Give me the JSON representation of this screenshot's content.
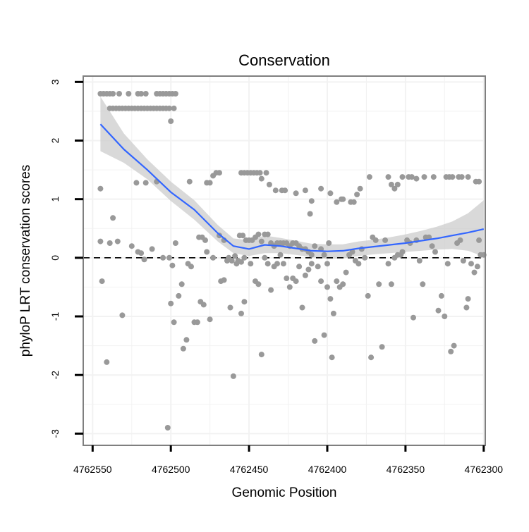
{
  "chart_data": {
    "type": "scatter",
    "title": "Conservation",
    "xlabel": "Genomic Position",
    "ylabel": "phyloP LRT conservation scores",
    "x_reversed": true,
    "xlim": [
      4762556,
      4762299
    ],
    "ylim": [
      -3.2,
      3.1
    ],
    "x_ticks": [
      4762550,
      4762500,
      4762450,
      4762400,
      4762350,
      4762300
    ],
    "x_tick_labels": [
      "4762550",
      "4762500",
      "4762450",
      "4762400",
      "4762350",
      "4762300"
    ],
    "y_ticks": [
      -3,
      -2,
      -1,
      0,
      1,
      2,
      3
    ],
    "y_tick_labels": [
      "-3",
      "-2",
      "-1",
      "0",
      "1",
      "2",
      "3"
    ],
    "grid": true,
    "reference_line": {
      "y": 0,
      "style": "dashed"
    },
    "colors": {
      "points": "#999999",
      "smooth_line": "#3366FF",
      "confidence_band": "#cccccc",
      "grid": "#f2f2f2",
      "border": "#7f7f7f"
    },
    "series": [
      {
        "name": "phyloP scores",
        "kind": "points",
        "points": [
          [
            4762545,
            2.8
          ],
          [
            4762543,
            2.8
          ],
          [
            4762541,
            2.8
          ],
          [
            4762539,
            2.8
          ],
          [
            4762537,
            2.8
          ],
          [
            4762533,
            2.8
          ],
          [
            4762527,
            2.8
          ],
          [
            4762521,
            2.8
          ],
          [
            4762519,
            2.8
          ],
          [
            4762516,
            2.8
          ],
          [
            4762509,
            2.8
          ],
          [
            4762507,
            2.8
          ],
          [
            4762505,
            2.8
          ],
          [
            4762503,
            2.8
          ],
          [
            4762501,
            2.8
          ],
          [
            4762499,
            2.8
          ],
          [
            4762497,
            2.8
          ],
          [
            4762539,
            2.55
          ],
          [
            4762537,
            2.55
          ],
          [
            4762535,
            2.55
          ],
          [
            4762533,
            2.55
          ],
          [
            4762531,
            2.55
          ],
          [
            4762529,
            2.55
          ],
          [
            4762527,
            2.55
          ],
          [
            4762525,
            2.55
          ],
          [
            4762523,
            2.55
          ],
          [
            4762521,
            2.55
          ],
          [
            4762519,
            2.55
          ],
          [
            4762517,
            2.55
          ],
          [
            4762515,
            2.55
          ],
          [
            4762513,
            2.55
          ],
          [
            4762511,
            2.55
          ],
          [
            4762509,
            2.55
          ],
          [
            4762507,
            2.55
          ],
          [
            4762505,
            2.55
          ],
          [
            4762503,
            2.55
          ],
          [
            4762501,
            2.55
          ],
          [
            4762498,
            2.55
          ],
          [
            4762500,
            2.33
          ],
          [
            4762545,
            1.18
          ],
          [
            4762522,
            1.28
          ],
          [
            4762516,
            1.28
          ],
          [
            4762509,
            1.3
          ],
          [
            4762488,
            1.3
          ],
          [
            4762477,
            1.28
          ],
          [
            4762475,
            1.28
          ],
          [
            4762473,
            1.4
          ],
          [
            4762471,
            1.45
          ],
          [
            4762469,
            1.45
          ],
          [
            4762455,
            1.45
          ],
          [
            4762453,
            1.45
          ],
          [
            4762451,
            1.45
          ],
          [
            4762449,
            1.45
          ],
          [
            4762447,
            1.45
          ],
          [
            4762445,
            1.45
          ],
          [
            4762443,
            1.45
          ],
          [
            4762439,
            1.45
          ],
          [
            4762442,
            1.35
          ],
          [
            4762437,
            1.25
          ],
          [
            4762433,
            1.15
          ],
          [
            4762429,
            1.15
          ],
          [
            4762427,
            1.15
          ],
          [
            4762420,
            1.1
          ],
          [
            4762414,
            1.15
          ],
          [
            4762410,
            0.97
          ],
          [
            4762404,
            1.18
          ],
          [
            4762398,
            1.1
          ],
          [
            4762394,
            0.95
          ],
          [
            4762391,
            1.0
          ],
          [
            4762385,
            0.95
          ],
          [
            4762383,
            0.95
          ],
          [
            4762381,
            1.08
          ],
          [
            4762379,
            1.18
          ],
          [
            4762373,
            1.38
          ],
          [
            4762361,
            1.38
          ],
          [
            4762359,
            1.25
          ],
          [
            4762357,
            1.18
          ],
          [
            4762355,
            1.25
          ],
          [
            4762352,
            1.38
          ],
          [
            4762348,
            1.38
          ],
          [
            4762346,
            1.38
          ],
          [
            4762343,
            1.35
          ],
          [
            4762338,
            1.38
          ],
          [
            4762332,
            1.38
          ],
          [
            4762324,
            1.38
          ],
          [
            4762322,
            1.38
          ],
          [
            4762320,
            1.38
          ],
          [
            4762316,
            1.38
          ],
          [
            4762314,
            1.38
          ],
          [
            4762310,
            1.38
          ],
          [
            4762305,
            1.3
          ],
          [
            4762303,
            1.3
          ],
          [
            4762411,
            0.75
          ],
          [
            4762390,
            1.0
          ],
          [
            4762537,
            0.68
          ],
          [
            4762545,
            0.28
          ],
          [
            4762544,
            -0.4
          ],
          [
            4762541,
            -1.78
          ],
          [
            4762539,
            0.25
          ],
          [
            4762534,
            0.28
          ],
          [
            4762531,
            -0.98
          ],
          [
            4762525,
            0.2
          ],
          [
            4762521,
            0.1
          ],
          [
            4762519,
            0.08
          ],
          [
            4762517,
            -0.03
          ],
          [
            4762512,
            0.15
          ],
          [
            4762505,
            0.0
          ],
          [
            4762499,
            -0.13
          ],
          [
            4762497,
            0.25
          ],
          [
            4762500,
            -0.78
          ],
          [
            4762498,
            -1.1
          ],
          [
            4762495,
            -0.65
          ],
          [
            4762493,
            -0.45
          ],
          [
            4762492,
            -1.55
          ],
          [
            4762490,
            -1.4
          ],
          [
            4762489,
            -0.1
          ],
          [
            4762487,
            -0.15
          ],
          [
            4762485,
            -1.1
          ],
          [
            4762483,
            -1.1
          ],
          [
            4762482,
            0.35
          ],
          [
            4762481,
            -0.75
          ],
          [
            4762480,
            0.35
          ],
          [
            4762479,
            -0.8
          ],
          [
            4762478,
            0.3
          ],
          [
            4762477,
            0.1
          ],
          [
            4762475,
            -1.05
          ],
          [
            4762473,
            0.0
          ],
          [
            4762469,
            0.38
          ],
          [
            4762466,
            0.3
          ],
          [
            4762463,
            0.0
          ],
          [
            4762461,
            -0.05
          ],
          [
            4762459,
            0.03
          ],
          [
            4762457,
            -0.05
          ],
          [
            4762455,
            -0.07
          ],
          [
            4762453,
            0.0
          ],
          [
            4762468,
            -0.4
          ],
          [
            4762466,
            -0.38
          ],
          [
            4762464,
            -0.05
          ],
          [
            4762462,
            -0.85
          ],
          [
            4762460,
            -2.02
          ],
          [
            4762458,
            -0.1
          ],
          [
            4762455,
            -0.95
          ],
          [
            4762453,
            -0.75
          ],
          [
            4762456,
            0.38
          ],
          [
            4762454,
            0.38
          ],
          [
            4762452,
            0.3
          ],
          [
            4762450,
            0.3
          ],
          [
            4762448,
            0.3
          ],
          [
            4762446,
            0.35
          ],
          [
            4762444,
            0.4
          ],
          [
            4762442,
            0.28
          ],
          [
            4762440,
            0.4
          ],
          [
            4762438,
            0.4
          ],
          [
            4762436,
            0.25
          ],
          [
            4762434,
            0.2
          ],
          [
            4762432,
            0.25
          ],
          [
            4762430,
            0.25
          ],
          [
            4762428,
            0.25
          ],
          [
            4762426,
            0.25
          ],
          [
            4762424,
            0.2
          ],
          [
            4762422,
            0.25
          ],
          [
            4762420,
            0.25
          ],
          [
            4762418,
            0.2
          ],
          [
            4762416,
            0.15
          ],
          [
            4762414,
            0.15
          ],
          [
            4762412,
            0.1
          ],
          [
            4762410,
            0.05
          ],
          [
            4762449,
            -0.1
          ],
          [
            4762446,
            -0.4
          ],
          [
            4762444,
            -0.45
          ],
          [
            4762442,
            -1.65
          ],
          [
            4762440,
            0.0
          ],
          [
            4762438,
            -0.1
          ],
          [
            4762436,
            -0.55
          ],
          [
            4762434,
            -0.15
          ],
          [
            4762432,
            -0.1
          ],
          [
            4762430,
            0.05
          ],
          [
            4762428,
            -0.1
          ],
          [
            4762426,
            -0.35
          ],
          [
            4762424,
            -0.5
          ],
          [
            4762422,
            -0.35
          ],
          [
            4762420,
            -0.4
          ],
          [
            4762418,
            -0.15
          ],
          [
            4762416,
            -0.85
          ],
          [
            4762414,
            -0.3
          ],
          [
            4762412,
            -0.2
          ],
          [
            4762410,
            -0.1
          ],
          [
            4762408,
            -1.42
          ],
          [
            4762406,
            -0.15
          ],
          [
            4762404,
            -0.4
          ],
          [
            4762402,
            -1.32
          ],
          [
            4762400,
            -0.5
          ],
          [
            4762398,
            -0.7
          ],
          [
            4762397,
            -1.7
          ],
          [
            4762408,
            0.2
          ],
          [
            4762404,
            0.15
          ],
          [
            4762402,
            0.05
          ],
          [
            4762399,
            0.25
          ],
          [
            4762396,
            -0.95
          ],
          [
            4762394,
            -0.4
          ],
          [
            4762392,
            -0.5
          ],
          [
            4762390,
            -0.45
          ],
          [
            4762388,
            -0.25
          ],
          [
            4762386,
            0.05
          ],
          [
            4762384,
            0.1
          ],
          [
            4762382,
            -0.05
          ],
          [
            4762380,
            -0.1
          ],
          [
            4762378,
            0.15
          ],
          [
            4762376,
            0.0
          ],
          [
            4762374,
            -0.65
          ],
          [
            4762372,
            -1.7
          ],
          [
            4762371,
            0.35
          ],
          [
            4762369,
            0.3
          ],
          [
            4762367,
            -0.45
          ],
          [
            4762365,
            -1.52
          ],
          [
            4762363,
            0.3
          ],
          [
            4762361,
            -0.1
          ],
          [
            4762359,
            -0.45
          ],
          [
            4762357,
            0.0
          ],
          [
            4762355,
            0.05
          ],
          [
            4762353,
            0.05
          ],
          [
            4762349,
            0.3
          ],
          [
            4762347,
            0.25
          ],
          [
            4762345,
            -1.02
          ],
          [
            4762343,
            0.3
          ],
          [
            4762341,
            -0.05
          ],
          [
            4762339,
            -0.45
          ],
          [
            4762337,
            0.35
          ],
          [
            4762335,
            0.35
          ],
          [
            4762333,
            0.2
          ],
          [
            4762331,
            0.1
          ],
          [
            4762329,
            -0.9
          ],
          [
            4762327,
            -0.65
          ],
          [
            4762325,
            -1.0
          ],
          [
            4762323,
            -0.1
          ],
          [
            4762321,
            -1.6
          ],
          [
            4762319,
            -1.5
          ],
          [
            4762317,
            0.25
          ],
          [
            4762315,
            0.3
          ],
          [
            4762313,
            -0.05
          ],
          [
            4762311,
            -0.85
          ],
          [
            4762310,
            -0.7
          ],
          [
            4762308,
            -0.1
          ],
          [
            4762306,
            -0.25
          ],
          [
            4762304,
            -0.15
          ],
          [
            4762302,
            0.05
          ],
          [
            4762300,
            0.05
          ],
          [
            4762303,
            0.3
          ],
          [
            4762501,
            0.0
          ],
          [
            4762502,
            -2.9
          ],
          [
            4762400,
            -0.1
          ],
          [
            4762352,
            0.1
          ]
        ]
      },
      {
        "name": "loess fit",
        "kind": "smooth",
        "x": [
          4762545,
          4762530,
          4762515,
          4762500,
          4762485,
          4762470,
          4762460,
          4762450,
          4762440,
          4762430,
          4762420,
          4762410,
          4762400,
          4762390,
          4762380,
          4762370,
          4762360,
          4762350,
          4762340,
          4762330,
          4762320,
          4762310,
          4762300
        ],
        "y": [
          2.28,
          1.85,
          1.5,
          1.12,
          0.82,
          0.42,
          0.2,
          0.15,
          0.22,
          0.2,
          0.16,
          0.12,
          0.11,
          0.12,
          0.16,
          0.19,
          0.22,
          0.25,
          0.29,
          0.33,
          0.38,
          0.43,
          0.49
        ],
        "lower": [
          1.82,
          1.62,
          1.34,
          0.97,
          0.65,
          0.28,
          0.08,
          0.03,
          0.08,
          0.08,
          0.05,
          0.01,
          -0.02,
          -0.01,
          0.03,
          0.06,
          0.08,
          0.1,
          0.12,
          0.14,
          0.15,
          0.12,
          0.02
        ],
        "upper": [
          2.75,
          2.12,
          1.68,
          1.3,
          0.98,
          0.56,
          0.33,
          0.3,
          0.38,
          0.34,
          0.29,
          0.24,
          0.23,
          0.23,
          0.28,
          0.31,
          0.35,
          0.4,
          0.46,
          0.53,
          0.62,
          0.76,
          0.98
        ]
      }
    ]
  }
}
